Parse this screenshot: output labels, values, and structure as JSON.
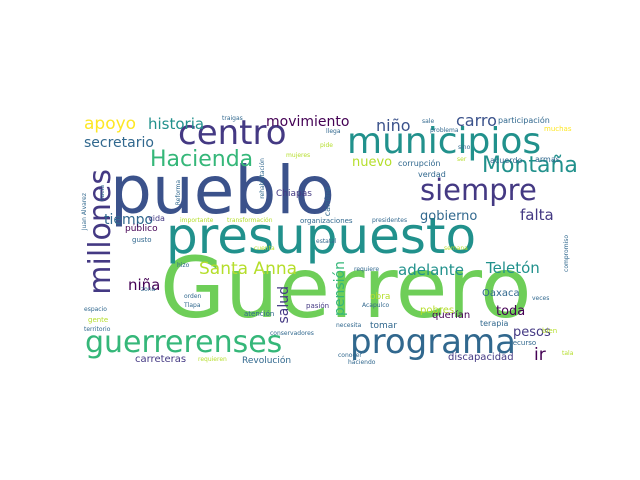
{
  "palette": {
    "dark_blue": "#3b528b",
    "blue": "#31688e",
    "teal": "#21918c",
    "green": "#35b779",
    "light_green": "#6ece58",
    "yellow_green": "#b5de2b",
    "yellow": "#fde725",
    "purple": "#482878",
    "dark_purple": "#440154",
    "violet": "#443983"
  },
  "words": [
    "Guerrero",
    "pueblo",
    "presupuesto",
    "municipios",
    "programa",
    "guerrerenses",
    "millones",
    "centro",
    "siempre",
    "Montaña",
    "Hacienda",
    "Santa Anna",
    "apoyo",
    "historia",
    "movimiento",
    "niño",
    "carro",
    "secretario",
    "nuevo",
    "gobierno",
    "falta",
    "tiempo",
    "niña",
    "adelante",
    "Teletón",
    "pensión",
    "salud",
    "toda",
    "pesos",
    "ir",
    "Oaxaca",
    "querían",
    "pobres",
    "obra",
    "tomar",
    "discapacidad",
    "carreteras",
    "Revolución",
    "público",
    "vida",
    "gusto",
    "Chiapas",
    "camino",
    "verdad",
    "corrupción",
    "acuerdo",
    "armas",
    "participación",
    "muchas",
    "organizaciones",
    "presidentes",
    "transformación",
    "importante",
    "traigas",
    "zona",
    "llega",
    "conservadores",
    "pasión",
    "atención",
    "necesita",
    "terapia",
    "recurso",
    "bien",
    "veces",
    "compromiso",
    "Acapulco",
    "Tlapa",
    "orden",
    "espacio",
    "territorio",
    "gente",
    "requieren",
    "conocer",
    "haciendo",
    "hizo",
    "requiere",
    "cuenta",
    "semana",
    "rehabilitación",
    "Reforma",
    "Juan Álvarez",
    "hacia",
    "problema",
    "sale",
    "sino",
    "pide",
    "mujeres",
    "tala",
    "estatal",
    "ser"
  ]
}
